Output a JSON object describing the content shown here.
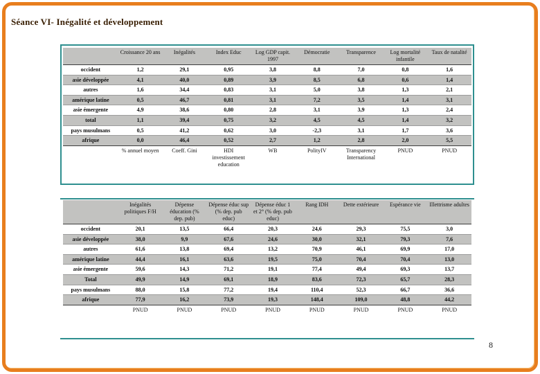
{
  "slide": {
    "title": "Séance VI- Inégalité et développement",
    "page_number": "8"
  },
  "colors": {
    "border_orange": "#e87e1e",
    "table_frame_teal": "#2e8f8f",
    "row_stripe_gray": "#c2c2c0"
  },
  "table1": {
    "columns": [
      "",
      "Croissance 20 ans",
      "Inégalités",
      "Index Educ",
      "Log GDP capit. 1997",
      "Démocratie",
      "Transparence",
      "Log mortalité infantile",
      "Taux de natalité"
    ],
    "rows": [
      {
        "label": "occident",
        "values": [
          "1,2",
          "29,1",
          "0,95",
          "3,8",
          "8,8",
          "7,0",
          "0,8",
          "1,6"
        ]
      },
      {
        "label": "asie développée",
        "values": [
          "4,1",
          "40,0",
          "0,89",
          "3,9",
          "8,5",
          "6,8",
          "0,6",
          "1,4"
        ]
      },
      {
        "label": "autres",
        "values": [
          "1,6",
          "34,4",
          "0,83",
          "3,1",
          "5,0",
          "3,8",
          "1,3",
          "2,1"
        ]
      },
      {
        "label": "amérique latine",
        "values": [
          "0,5",
          "46,7",
          "0,81",
          "3,1",
          "7,2",
          "3,5",
          "1,4",
          "3,1"
        ]
      },
      {
        "label": "asie émergente",
        "values": [
          "4,9",
          "38,6",
          "0,80",
          "2,8",
          "3,1",
          "3,9",
          "1,3",
          "2,4"
        ]
      },
      {
        "label": "total",
        "values": [
          "1,1",
          "39,4",
          "0,75",
          "3,2",
          "4,5",
          "4,5",
          "1,4",
          "3,2"
        ]
      },
      {
        "label": "pays musulmans",
        "values": [
          "0,5",
          "41,2",
          "0,62",
          "3,0",
          "-2,3",
          "3,1",
          "1,7",
          "3,6"
        ]
      },
      {
        "label": "afrique",
        "values": [
          "0,0",
          "46,4",
          "0,52",
          "2,7",
          "1,2",
          "2,8",
          "2,0",
          "5,5"
        ]
      }
    ],
    "sources": [
      "",
      "% annuel moyen",
      "Coeff. Gini",
      "HDI investissement education",
      "WB",
      "PolityIV",
      "Transparency International",
      "PNUD",
      "PNUD"
    ]
  },
  "table2": {
    "columns": [
      "",
      "Inégalités politiques F/H",
      "Dépense éducation (% dep. pub)",
      "Dépense éduc sup (% dep. pub educ)",
      "Dépense éduc 1 et 2° (% dep. pub educ)",
      "Rang IDH",
      "Dette extérieure",
      "Espérance vie",
      "Illettrisme adultes"
    ],
    "rows": [
      {
        "label": "occident",
        "values": [
          "20,1",
          "13,5",
          "66,4",
          "20,3",
          "24,6",
          "29,3",
          "75,5",
          "3,0"
        ]
      },
      {
        "label": "asie développée",
        "values": [
          "38,0",
          "9,9",
          "67,6",
          "24,6",
          "30,0",
          "32,1",
          "79,3",
          "7,6"
        ]
      },
      {
        "label": "autres",
        "values": [
          "61,6",
          "13,8",
          "69,4",
          "13,2",
          "70,9",
          "46,1",
          "69,9",
          "17,0"
        ]
      },
      {
        "label": "amérique latine",
        "values": [
          "44,4",
          "16,1",
          "63,6",
          "19,5",
          "75,0",
          "70,4",
          "70,4",
          "13,0"
        ]
      },
      {
        "label": "asie émergente",
        "values": [
          "59,6",
          "14,3",
          "71,2",
          "19,1",
          "77,4",
          "49,4",
          "69,3",
          "13,7"
        ]
      },
      {
        "label": "Total",
        "values": [
          "49,9",
          "14,9",
          "69,1",
          "18,9",
          "83,6",
          "72,3",
          "65,7",
          "28,3"
        ]
      },
      {
        "label": "pays musulmans",
        "values": [
          "88,0",
          "15,8",
          "77,2",
          "19,4",
          "110,4",
          "52,3",
          "66,7",
          "36,6"
        ]
      },
      {
        "label": "afrique",
        "values": [
          "77,9",
          "16,2",
          "73,9",
          "19,3",
          "148,4",
          "109,0",
          "48,8",
          "44,2"
        ]
      }
    ],
    "sources": [
      "",
      "PNUD",
      "PNUD",
      "PNUD",
      "PNUD",
      "PNUD",
      "PNUD",
      "PNUD",
      "PNUD"
    ]
  }
}
